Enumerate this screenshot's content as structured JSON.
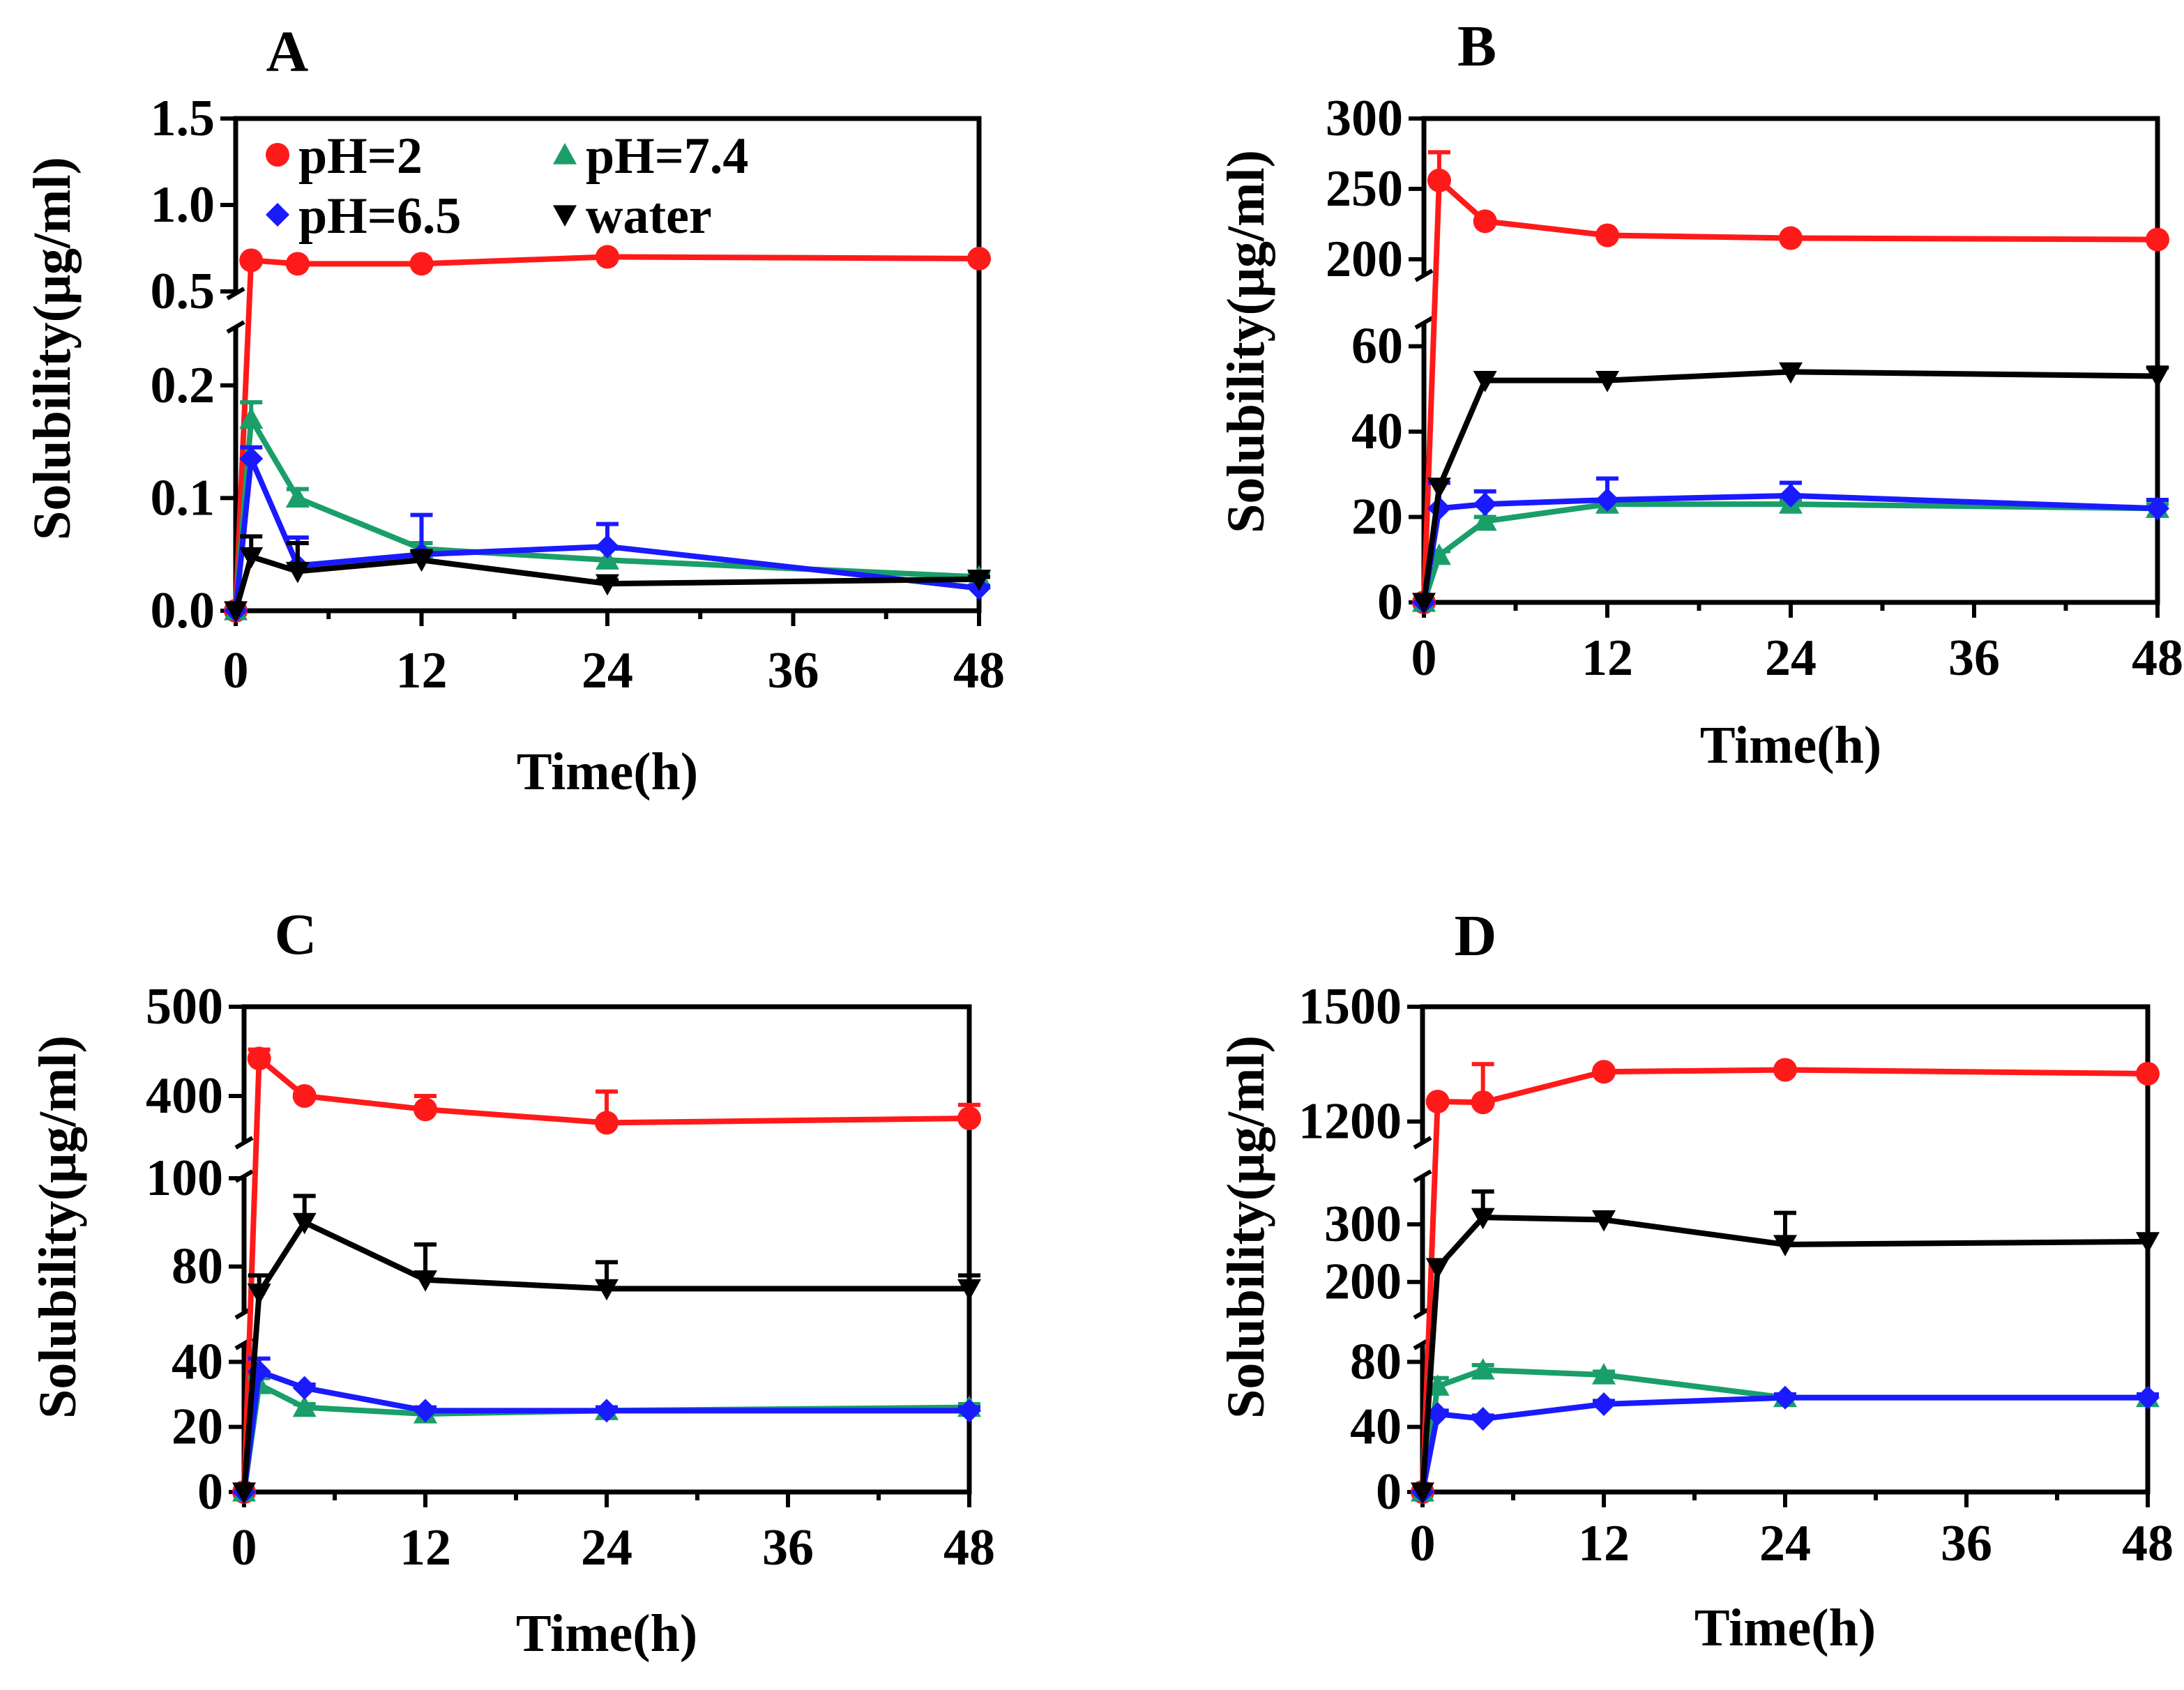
{
  "figure": {
    "legend": [
      {
        "name": "pH=2",
        "color": "#ff1a1a",
        "marker": "circle"
      },
      {
        "name": "pH=7.4",
        "color": "#1a9e6a",
        "marker": "triangle-up"
      },
      {
        "name": "pH=6.5",
        "color": "#1a1aff",
        "marker": "diamond"
      },
      {
        "name": "water",
        "color": "#000000",
        "marker": "triangle-down"
      }
    ]
  },
  "chart_data": [
    {
      "panel": "A",
      "type": "line",
      "xlabel": "Time(h)",
      "ylabel": "Solubility(μg/ml)",
      "x": [
        0,
        1,
        4,
        12,
        24,
        48
      ],
      "xticks": [
        "0",
        "12",
        "24",
        "36",
        "48"
      ],
      "segments": [
        {
          "range": [
            0,
            0.25
          ],
          "ticks": [
            "0.0",
            "0.1",
            "0.2"
          ]
        },
        {
          "range": [
            0.5,
            1.5
          ],
          "ticks": [
            "0.5",
            "1.0",
            "1.5"
          ]
        }
      ],
      "series": [
        {
          "name": "pH=2",
          "values": [
            0,
            0.68,
            0.66,
            0.66,
            0.7,
            0.69
          ],
          "errors": [
            0,
            0,
            0,
            0,
            0,
            0
          ]
        },
        {
          "name": "pH=7.4",
          "values": [
            0,
            0.17,
            0.1,
            0.055,
            0.045,
            0.03
          ],
          "errors": [
            0,
            0.015,
            0.008,
            0.005,
            0.01,
            0.003
          ]
        },
        {
          "name": "pH=6.5",
          "values": [
            0,
            0.135,
            0.04,
            0.05,
            0.057,
            0.02
          ],
          "errors": [
            0,
            0.01,
            0.025,
            0.035,
            0.02,
            0.002
          ]
        },
        {
          "name": "water",
          "values": [
            0,
            0.048,
            0.035,
            0.045,
            0.024,
            0.028
          ],
          "errors": [
            0,
            0.018,
            0.025,
            0.008,
            0.003,
            0.002
          ]
        }
      ]
    },
    {
      "panel": "B",
      "type": "line",
      "xlabel": "Time(h)",
      "ylabel": "Solubility(μg/ml)",
      "x": [
        0,
        1,
        4,
        12,
        24,
        48
      ],
      "xticks": [
        "0",
        "12",
        "24",
        "36",
        "48"
      ],
      "segments": [
        {
          "range": [
            0,
            65
          ],
          "ticks": [
            "0",
            "20",
            "40",
            "60"
          ]
        },
        {
          "range": [
            190,
            300
          ],
          "ticks": [
            "200",
            "250",
            "300"
          ]
        }
      ],
      "series": [
        {
          "name": "pH=2",
          "values": [
            0,
            256,
            227,
            217,
            215,
            214
          ],
          "errors": [
            0,
            20,
            0,
            0,
            0,
            0
          ]
        },
        {
          "name": "pH=7.4",
          "values": [
            0,
            11,
            19,
            23,
            23,
            22
          ],
          "errors": [
            0,
            1,
            1,
            1,
            1,
            1
          ]
        },
        {
          "name": "pH=6.5",
          "values": [
            0,
            22,
            23,
            24,
            25,
            22
          ],
          "errors": [
            0,
            6,
            3,
            5,
            3,
            2
          ]
        },
        {
          "name": "water",
          "values": [
            0,
            27,
            52,
            52,
            54,
            53
          ],
          "errors": [
            0,
            0,
            0,
            0,
            0,
            2
          ]
        }
      ]
    },
    {
      "panel": "C",
      "type": "line",
      "xlabel": "Time(h)",
      "ylabel": "Solubility(μg/ml)",
      "x": [
        0,
        1,
        4,
        12,
        24,
        48
      ],
      "xticks": [
        "0",
        "12",
        "24",
        "36",
        "48"
      ],
      "segments": [
        {
          "range": [
            0,
            45
          ],
          "ticks": [
            "0",
            "20",
            "40"
          ]
        },
        {
          "range": [
            70,
            100
          ],
          "ticks": [
            "80",
            "100"
          ]
        },
        {
          "range": [
            350,
            500
          ],
          "ticks": [
            "400",
            "500"
          ]
        }
      ],
      "series": [
        {
          "name": "pH=2",
          "values": [
            0,
            442,
            400,
            385,
            370,
            375
          ],
          "errors": [
            0,
            10,
            0,
            15,
            35,
            15
          ]
        },
        {
          "name": "pH=7.4",
          "values": [
            0,
            33,
            26,
            24,
            25,
            26
          ],
          "errors": [
            0,
            2,
            1,
            1,
            1,
            1
          ]
        },
        {
          "name": "pH=6.5",
          "values": [
            0,
            37,
            32,
            25,
            25,
            25
          ],
          "errors": [
            0,
            4,
            1,
            1,
            1,
            1
          ]
        },
        {
          "name": "water",
          "values": [
            0,
            74,
            90,
            77,
            75,
            75
          ],
          "errors": [
            0,
            4,
            6,
            8,
            6,
            3
          ]
        }
      ]
    },
    {
      "panel": "D",
      "type": "line",
      "xlabel": "Time(h)",
      "ylabel": "Solubility(μg/ml)",
      "x": [
        0,
        1,
        4,
        12,
        24,
        48
      ],
      "xticks": [
        "0",
        "12",
        "24",
        "36",
        "48"
      ],
      "segments": [
        {
          "range": [
            0,
            90
          ],
          "ticks": [
            "0",
            "40",
            "80"
          ]
        },
        {
          "range": [
            150,
            380
          ],
          "ticks": [
            "200",
            "300"
          ]
        },
        {
          "range": [
            1150,
            1500
          ],
          "ticks": [
            "1200",
            "1500"
          ]
        }
      ],
      "series": [
        {
          "name": "pH=2",
          "values": [
            0,
            1252,
            1250,
            1330,
            1335,
            1325
          ],
          "errors": [
            0,
            0,
            100,
            0,
            0,
            0
          ]
        },
        {
          "name": "pH=7.4",
          "values": [
            0,
            65,
            75,
            72,
            58,
            58
          ],
          "errors": [
            0,
            5,
            3,
            2,
            1,
            1
          ]
        },
        {
          "name": "pH=6.5",
          "values": [
            0,
            48,
            45,
            54,
            58,
            58
          ],
          "errors": [
            0,
            2,
            2,
            2,
            2,
            2
          ]
        },
        {
          "name": "water",
          "values": [
            0,
            225,
            312,
            308,
            265,
            270
          ],
          "errors": [
            0,
            0,
            45,
            0,
            55,
            0
          ]
        }
      ]
    }
  ]
}
